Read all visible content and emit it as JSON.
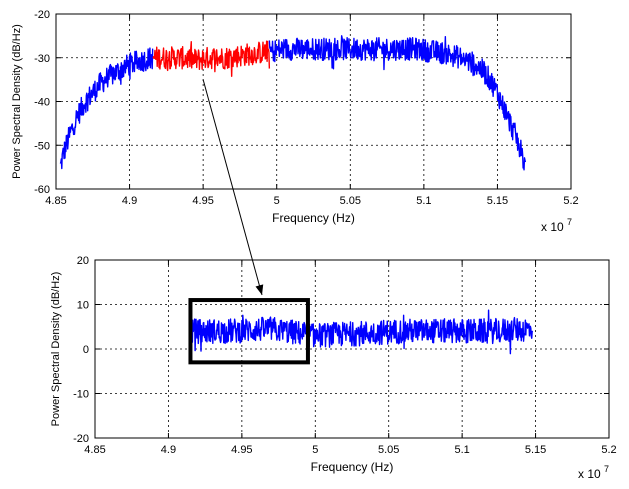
{
  "colors": {
    "primary_trace": "#0000ff",
    "highlight_trace": "#ff0000",
    "axes": "#000000",
    "grid": "#000000"
  },
  "annotations": {
    "arrow": "connects the red segment of the top chart to the boxed region of the bottom chart",
    "box_x_range": [
      49150000,
      49950000
    ],
    "box_y_range": [
      -3,
      11
    ]
  },
  "chart_data": [
    {
      "type": "line",
      "xlabel": "Frequency (Hz)",
      "ylabel": "Power Spectral Density (dB/Hz)",
      "x_exponent_label": "x 10",
      "x_exponent_power": "7",
      "xlim": [
        48500000,
        52000000
      ],
      "ylim": [
        -60,
        -20
      ],
      "x_ticks": [
        "4.85",
        "4.9",
        "4.95",
        "5",
        "5.05",
        "5.1",
        "5.15",
        "5.2"
      ],
      "x_tick_values": [
        48500000,
        49000000,
        49500000,
        50000000,
        50500000,
        51000000,
        51500000,
        52000000
      ],
      "y_ticks": [
        "-20",
        "-30",
        "-40",
        "-50",
        "-60"
      ],
      "y_tick_values": [
        -20,
        -30,
        -40,
        -50,
        -60
      ],
      "grid": true,
      "series": [
        {
          "color": "#0000ff",
          "x": [
            48530000,
            48550000,
            48600000,
            48650000,
            48700000,
            48750000,
            48800000,
            48850000,
            48900000,
            48950000,
            49000000,
            49050000,
            49100000,
            49160000
          ],
          "y": [
            -55,
            -52,
            -47,
            -43,
            -40,
            -38,
            -36,
            -34.5,
            -33.5,
            -32.5,
            -31.5,
            -31,
            -30.5,
            -30
          ]
        },
        {
          "color": "#ff0000",
          "x": [
            49160000,
            49250000,
            49350000,
            49450000,
            49550000,
            49650000,
            49750000,
            49850000,
            49950000
          ],
          "y": [
            -30,
            -30,
            -30,
            -30.5,
            -30,
            -30,
            -29.5,
            -29,
            -28.5
          ]
        },
        {
          "color": "#0000ff",
          "x": [
            49950000,
            50050000,
            50150000,
            50250000,
            50350000,
            50450000,
            50550000,
            50650000,
            50750000,
            50850000,
            50950000,
            51050000,
            51150000,
            51250000,
            51350000,
            51400000,
            51450000,
            51500000,
            51550000,
            51600000,
            51650000,
            51690000
          ],
          "y": [
            -28.5,
            -28,
            -28,
            -28,
            -28,
            -28,
            -28,
            -28,
            -28,
            -28,
            -28,
            -28.5,
            -29,
            -30,
            -31.5,
            -33,
            -35,
            -38,
            -42,
            -46,
            -50,
            -55
          ]
        }
      ]
    },
    {
      "type": "line",
      "xlabel": "Frequency (Hz)",
      "ylabel": "Power Spectral Density (dB/Hz)",
      "x_exponent_label": "x 10",
      "x_exponent_power": "7",
      "xlim": [
        48500000,
        52000000
      ],
      "ylim": [
        -20,
        20
      ],
      "x_ticks": [
        "4.85",
        "4.9",
        "4.95",
        "5",
        "5.05",
        "5.1",
        "5.15",
        "5.2"
      ],
      "x_tick_values": [
        48500000,
        49000000,
        49500000,
        50000000,
        50500000,
        51000000,
        51500000,
        52000000
      ],
      "y_ticks": [
        "20",
        "10",
        "0",
        "-10",
        "-20"
      ],
      "y_tick_values": [
        20,
        10,
        0,
        -10,
        -20
      ],
      "grid": true,
      "series": [
        {
          "color": "#0000ff",
          "x": [
            49160000,
            49400000,
            49700000,
            50000000,
            50300000,
            50600000,
            50900000,
            51200000,
            51480000
          ],
          "y": [
            4,
            4,
            4.5,
            3,
            3.5,
            4,
            4,
            4,
            4.5
          ]
        }
      ]
    }
  ]
}
